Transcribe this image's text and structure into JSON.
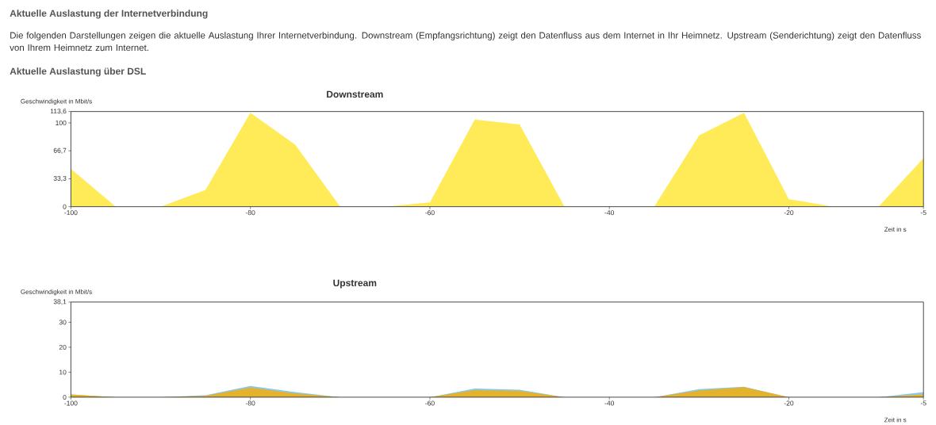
{
  "chart_data": [
    {
      "type": "area",
      "title": "Downstream",
      "xlabel": "Zeit in s",
      "ylabel": "Geschwindigkeit in Mbit/s",
      "annotations": [
        "Aktuelle Auslastung der Internetverbindung",
        "Die folgenden Darstellungen zeigen die aktuelle Auslastung Ihrer Internetverbindung. Downstream (Empfangsrichtung) zeigt den Datenfluss aus dem Internet in Ihr Heimnetz. Upstream (Senderichtung) zeigt den Datenfluss von Ihrem Heimnetz zum Internet.",
        "Aktuelle Auslastung über DSL"
      ],
      "x": [
        -100,
        -95,
        -90,
        -85,
        -80,
        -75,
        -70,
        -65,
        -60,
        -55,
        -50,
        -45,
        -40,
        -35,
        -30,
        -25,
        -20,
        -15,
        -10,
        -5
      ],
      "series": [
        {
          "color": "#ffeb57",
          "values": [
            45,
            0,
            0,
            20,
            112,
            74,
            0,
            0,
            5,
            104,
            98,
            0,
            0,
            0,
            85,
            112,
            9,
            0,
            0,
            58
          ]
        }
      ],
      "xlim": [
        -100,
        -5
      ],
      "ylim": [
        0,
        113.6
      ],
      "xticks": [
        -100,
        -80,
        -60,
        -40,
        -20,
        -5
      ],
      "yticks": [
        0,
        {
          "value": 33.3,
          "label": "33,3"
        },
        {
          "value": 66.7,
          "label": "66,7"
        },
        100,
        {
          "value": 113.6,
          "label": "113,6"
        }
      ]
    },
    {
      "type": "area",
      "title": "Upstream",
      "xlabel": "Zeit in s",
      "ylabel": "Geschwindigkeit in Mbit/s",
      "x": [
        -100,
        -95,
        -90,
        -85,
        -80,
        -75,
        -70,
        -65,
        -60,
        -55,
        -50,
        -45,
        -40,
        -35,
        -30,
        -25,
        -20,
        -15,
        -10,
        -5
      ],
      "series": [
        {
          "color": "#8cc8e6",
          "values": [
            1.1,
            0,
            0,
            0.8,
            4.5,
            2,
            0,
            0,
            0,
            3.5,
            3,
            0,
            0,
            0,
            3.2,
            4.2,
            0,
            0,
            0,
            2
          ]
        },
        {
          "color": "#e3b22e",
          "values": [
            1.1,
            0,
            0,
            0.5,
            3.9,
            1.5,
            0,
            0,
            0,
            2.8,
            2.5,
            0,
            0,
            0,
            2.7,
            4,
            0,
            0,
            0,
            1.1
          ]
        }
      ],
      "xlim": [
        -100,
        -5
      ],
      "ylim": [
        0,
        38.1
      ],
      "xticks": [
        -100,
        -80,
        -60,
        -40,
        -20,
        -5
      ],
      "yticks": [
        0,
        10,
        20,
        30,
        {
          "value": 38.1,
          "label": "38,1"
        }
      ]
    }
  ]
}
